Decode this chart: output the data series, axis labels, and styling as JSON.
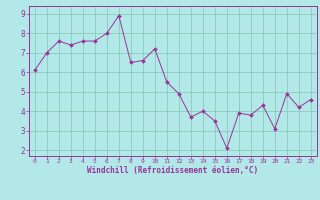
{
  "x": [
    0,
    1,
    2,
    3,
    4,
    5,
    6,
    7,
    8,
    9,
    10,
    11,
    12,
    13,
    14,
    15,
    16,
    17,
    18,
    19,
    20,
    21,
    22,
    23
  ],
  "y": [
    6.1,
    7.0,
    7.6,
    7.4,
    7.6,
    7.6,
    8.0,
    8.9,
    6.5,
    6.6,
    7.2,
    5.5,
    4.9,
    3.7,
    4.0,
    3.5,
    2.1,
    3.9,
    3.8,
    4.3,
    3.1,
    4.9,
    4.2,
    4.6
  ],
  "line_color": "#993399",
  "marker_color": "#993399",
  "bg_color": "#b3e8e8",
  "grid_color": "#88ccbb",
  "xlabel": "Windchill (Refroidissement éolien,°C)",
  "xlim": [
    -0.5,
    23.5
  ],
  "ylim": [
    1.7,
    9.4
  ],
  "yticks": [
    2,
    3,
    4,
    5,
    6,
    7,
    8,
    9
  ],
  "xticks": [
    0,
    1,
    2,
    3,
    4,
    5,
    6,
    7,
    8,
    9,
    10,
    11,
    12,
    13,
    14,
    15,
    16,
    17,
    18,
    19,
    20,
    21,
    22,
    23
  ],
  "tick_color": "#993399",
  "label_color": "#993399",
  "spine_color": "#993399",
  "axis_bg_color": "#b3e8e8"
}
